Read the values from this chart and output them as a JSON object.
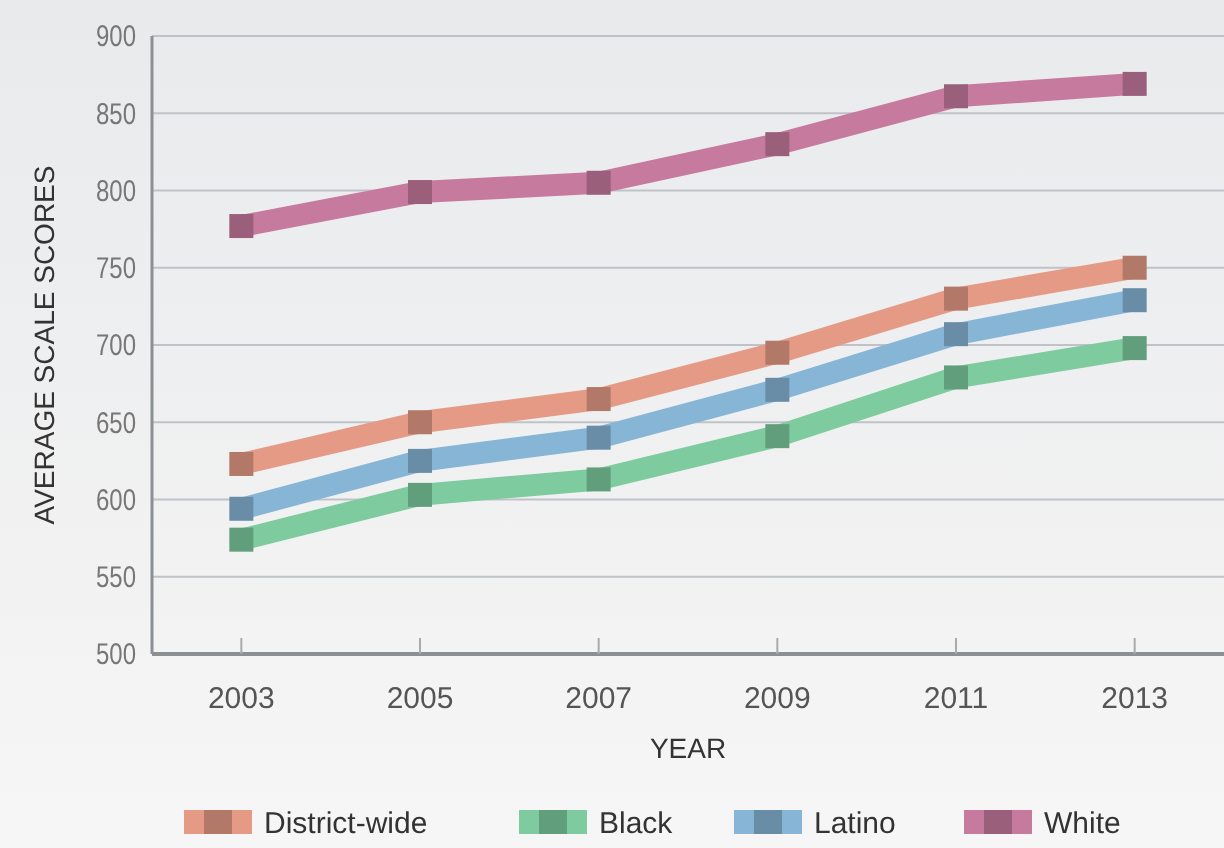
{
  "chart_data": {
    "type": "line",
    "xlabel": "YEAR",
    "ylabel": "AVERAGE SCALE SCORES",
    "x": [
      2003,
      2005,
      2007,
      2009,
      2011,
      2013
    ],
    "xlim": [
      2002,
      2014
    ],
    "xticks": [
      2003,
      2005,
      2007,
      2009,
      2011,
      2013
    ],
    "ylim": [
      500,
      900
    ],
    "yticks": [
      500,
      550,
      600,
      650,
      700,
      750,
      800,
      850,
      900
    ],
    "grid": "y",
    "legend": "bottom",
    "marker": "square",
    "line_style": "solid",
    "series": [
      {
        "name": "District-wide",
        "color": "#e59a85",
        "values": [
          623,
          650,
          665,
          695,
          730,
          750
        ]
      },
      {
        "name": "Black",
        "color": "#7dcb9f",
        "values": [
          574,
          603,
          613,
          641,
          679,
          698
        ]
      },
      {
        "name": "Latino",
        "color": "#87b5d6",
        "values": [
          594,
          625,
          640,
          671,
          707,
          729
        ]
      },
      {
        "name": "White",
        "color": "#c67a9e",
        "values": [
          777,
          799,
          805,
          830,
          861,
          869
        ]
      }
    ]
  }
}
